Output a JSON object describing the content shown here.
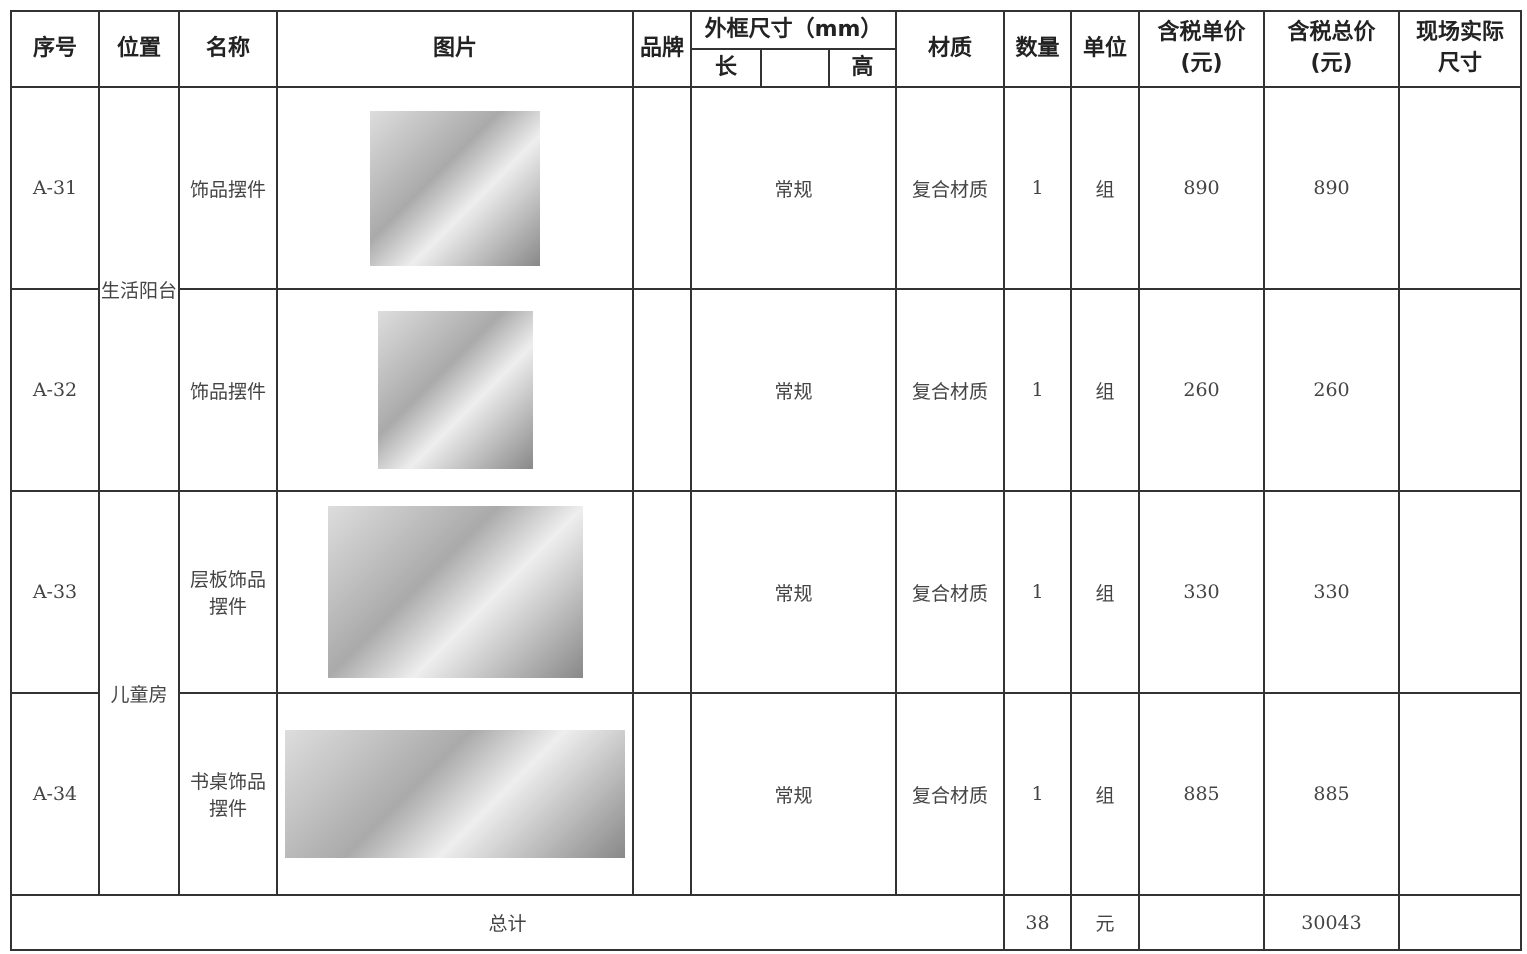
{
  "table": {
    "header": {
      "seq": "序号",
      "location": "位置",
      "name": "名称",
      "image": "图片",
      "brand": "品牌",
      "size": "外框尺寸（mm）",
      "length": "长",
      "height": "高",
      "material": "材质",
      "qty": "数量",
      "unit": "单位",
      "unit_price": "含税单价\n(元)",
      "total_price": "含税总价\n(元)",
      "actual_size": "现场实际\n尺寸"
    },
    "locations": [
      {
        "label": "生活阳台",
        "rows": 2
      },
      {
        "label": "儿童房",
        "rows": 2
      }
    ],
    "rows": [
      {
        "seq": "A-31",
        "name": "饰品摆件",
        "size": "常规",
        "material": "复合材质",
        "qty": 1,
        "unit": "组",
        "unit_price": 890,
        "total_price": 890
      },
      {
        "seq": "A-32",
        "name": "饰品摆件",
        "size": "常规",
        "material": "复合材质",
        "qty": 1,
        "unit": "组",
        "unit_price": 260,
        "total_price": 260
      },
      {
        "seq": "A-33",
        "name": "层板饰品\n摆件",
        "size": "常规",
        "material": "复合材质",
        "qty": 1,
        "unit": "组",
        "unit_price": 330,
        "total_price": 330
      },
      {
        "seq": "A-34",
        "name": "书桌饰品\n摆件",
        "size": "常规",
        "material": "复合材质",
        "qty": 1,
        "unit": "组",
        "unit_price": 885,
        "total_price": 885
      }
    ],
    "total": {
      "label": "总计",
      "qty": 38,
      "unit": "元",
      "total_price": 30043
    }
  }
}
